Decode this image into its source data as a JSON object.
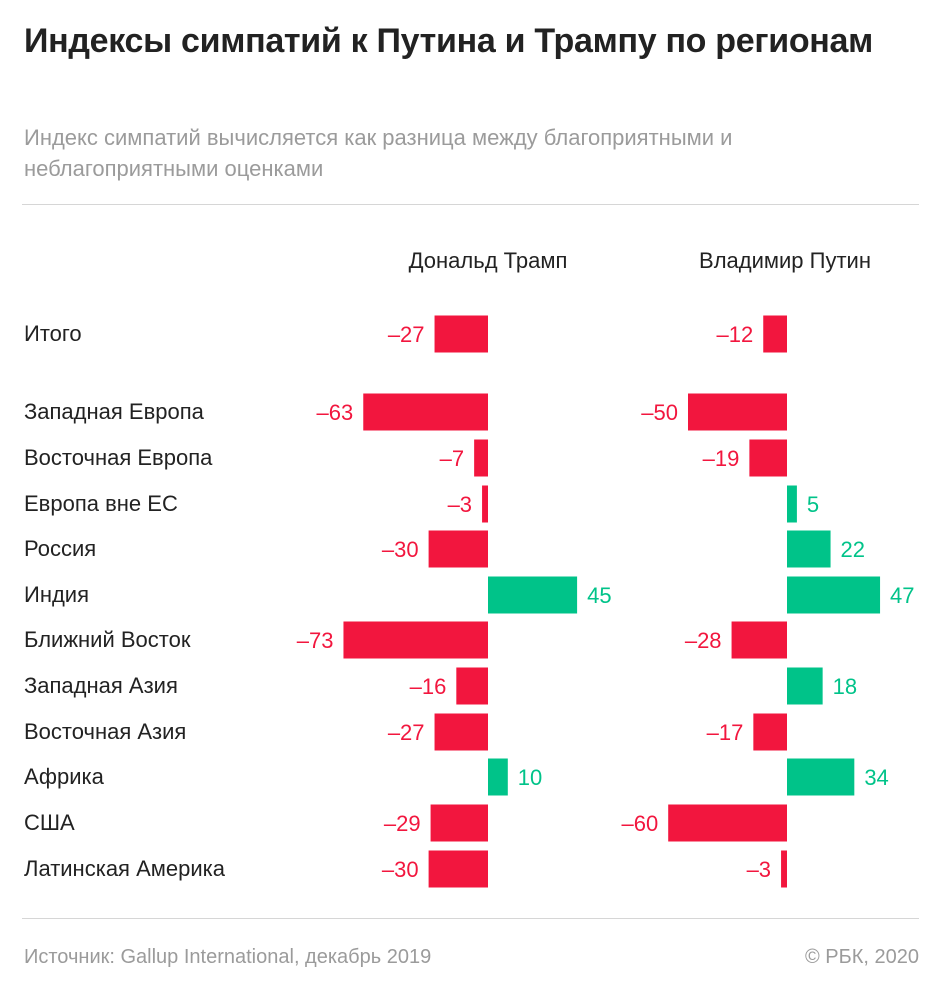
{
  "header": {
    "title": "Индексы симпатий к Путина и Трампу по регионам",
    "subtitle": "Индекс симпатий вычисляется как разница между благоприятными и неблагоприятными оценками"
  },
  "footer": {
    "source": "Источник: Gallup International, декабрь 2019",
    "copyright": "© РБК, 2020"
  },
  "colors": {
    "negative": "#f2163e",
    "positive": "#00c389",
    "text": "#222222",
    "muted": "#9b9b9b"
  },
  "chart_data": {
    "type": "bar",
    "orientation": "horizontal",
    "diverging": true,
    "title": "Индексы симпатий к Путина и Трампу по регионам",
    "subtitle": "Индекс симпатий вычисляется как разница между благоприятными и неблагоприятными оценками",
    "categories": [
      "Итого",
      "Западная Европа",
      "Восточная Европа",
      "Европа вне ЕС",
      "Россия",
      "Индия",
      "Ближний Восток",
      "Западная Азия",
      "Восточная Азия",
      "Африка",
      "США",
      "Латинская Америка"
    ],
    "series": [
      {
        "name": "Дональд Трамп",
        "values": [
          -27,
          -63,
          -7,
          -3,
          -30,
          45,
          -73,
          -16,
          -27,
          10,
          -29,
          -30
        ]
      },
      {
        "name": "Владимир Путин",
        "values": [
          -12,
          -50,
          -19,
          5,
          22,
          47,
          -28,
          18,
          -17,
          34,
          -60,
          -3
        ]
      }
    ],
    "legend": "none",
    "grid": false
  }
}
